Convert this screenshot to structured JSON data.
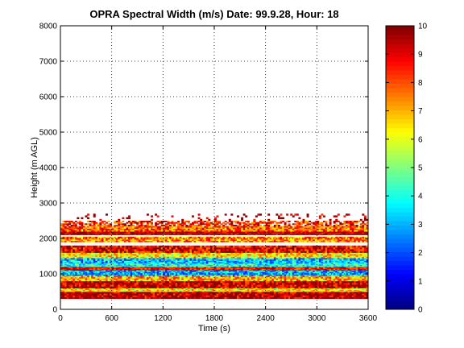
{
  "chart_data": {
    "type": "heatmap",
    "title": "OPRA Spectral Width (m/s)  Date: 99.9.28, Hour: 18",
    "xlabel": "Time (s)",
    "ylabel": "Height (m AGL)",
    "xlim": [
      0,
      3600
    ],
    "ylim": [
      0,
      8000
    ],
    "xticks": [
      "0",
      "600",
      "1200",
      "1800",
      "2400",
      "3000",
      "3600"
    ],
    "yticks": [
      "0",
      "1000",
      "2000",
      "3000",
      "4000",
      "5000",
      "6000",
      "7000",
      "8000"
    ],
    "grid": true,
    "colorbar": {
      "range": [
        0,
        10
      ],
      "ticks": [
        "0",
        "1",
        "2",
        "3",
        "4",
        "5",
        "6",
        "7",
        "8",
        "9",
        "10"
      ],
      "colormap": "jet"
    },
    "layers": [
      {
        "y_from": 300,
        "y_to": 500,
        "value": 9.6
      },
      {
        "y_from": 500,
        "y_to": 600,
        "value": 6.5
      },
      {
        "y_from": 600,
        "y_to": 800,
        "value": 9.4
      },
      {
        "y_from": 800,
        "y_to": 950,
        "value": 7.0
      },
      {
        "y_from": 950,
        "y_to": 1100,
        "value": 3.0
      },
      {
        "y_from": 1100,
        "y_to": 1200,
        "value": 8.8
      },
      {
        "y_from": 1200,
        "y_to": 1300,
        "value": 4.0
      },
      {
        "y_from": 1300,
        "y_to": 1450,
        "value": 3.2
      },
      {
        "y_from": 1450,
        "y_to": 1600,
        "value": 6.5
      },
      {
        "y_from": 1600,
        "y_to": 1800,
        "value": 9.0
      },
      {
        "y_from": 1900,
        "y_to": 2050,
        "value": 7.5
      },
      {
        "y_from": 2100,
        "y_to": 2200,
        "value": 9.6
      },
      {
        "y_from": 2200,
        "y_to": 2350,
        "value": 7.8
      },
      {
        "y_from": 2350,
        "y_to": 2500,
        "value": 8.5
      },
      {
        "y_from": 2500,
        "y_to": 2700,
        "value": 9.8
      }
    ]
  }
}
